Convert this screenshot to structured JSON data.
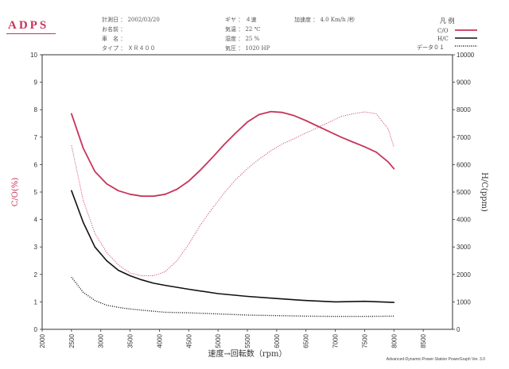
{
  "logo": "ADPS",
  "header": {
    "date": "計測日 ： 2002/03/20",
    "name": "お名前 ：",
    "vehicle": "車　名 ：",
    "type": "タイプ ： ＸＲ４００",
    "gear": "ギヤ ： ４速",
    "temp": "気温 ： 22 ℃",
    "humidity": "湿度 ： 25 %",
    "pressure": "気圧 ： 1020 HP",
    "accel": "加速度 ： 4.0 Km/h /秒"
  },
  "legend": {
    "title": "凡 例",
    "items": [
      {
        "label": "C/O",
        "color": "#c8345a",
        "style": "solid"
      },
      {
        "label": "H/C",
        "color": "#111111",
        "style": "solid"
      },
      {
        "label": "データ０１",
        "color": "#111111",
        "style": "dotted"
      }
    ]
  },
  "footer": "Advanced-Dynamic-Power-Station PowerGraph Ver. 3.0",
  "chart_data": {
    "type": "line",
    "xlabel": "速度→回転数（rpm）",
    "ylabel_left": "C/O(%)",
    "ylabel_right": "H/C(ppm)",
    "xlim": [
      2000,
      9000
    ],
    "ylim_left": [
      0,
      10
    ],
    "ylim_right": [
      0,
      10000
    ],
    "x_ticks": [
      2000,
      2500,
      3000,
      3500,
      4000,
      4500,
      5000,
      5500,
      6000,
      6500,
      7000,
      7500,
      8000,
      8500
    ],
    "y_ticks_left": [
      0,
      1,
      2,
      3,
      4,
      5,
      6,
      7,
      8,
      9,
      10
    ],
    "y_ticks_right": [
      0,
      1000,
      2000,
      3000,
      4000,
      5000,
      6000,
      7000,
      8000,
      9000,
      10000
    ],
    "grid": false,
    "series": [
      {
        "name": "C/O",
        "axis": "left",
        "color": "#c8345a",
        "style": "solid",
        "width": 1.8,
        "x": [
          2500,
          2700,
          2900,
          3100,
          3300,
          3500,
          3700,
          3900,
          4100,
          4300,
          4500,
          4700,
          4900,
          5100,
          5300,
          5500,
          5700,
          5900,
          6100,
          6300,
          6500,
          6700,
          6900,
          7100,
          7300,
          7500,
          7700,
          7900,
          8000
        ],
        "y": [
          7.85,
          6.6,
          5.75,
          5.3,
          5.05,
          4.92,
          4.85,
          4.85,
          4.92,
          5.1,
          5.4,
          5.8,
          6.25,
          6.72,
          7.15,
          7.55,
          7.82,
          7.93,
          7.9,
          7.78,
          7.6,
          7.4,
          7.2,
          7.0,
          6.82,
          6.65,
          6.45,
          6.1,
          5.85
        ]
      },
      {
        "name": "H/C",
        "axis": "left",
        "color": "#111111",
        "style": "solid",
        "width": 1.6,
        "x": [
          2500,
          2700,
          2900,
          3100,
          3300,
          3500,
          3700,
          3900,
          4100,
          4500,
          5000,
          5500,
          6000,
          6500,
          7000,
          7500,
          8000
        ],
        "y": [
          5.05,
          3.9,
          3.0,
          2.5,
          2.15,
          1.95,
          1.8,
          1.68,
          1.6,
          1.46,
          1.3,
          1.2,
          1.12,
          1.05,
          1.0,
          1.02,
          0.98
        ]
      },
      {
        "name": "",
        "axis": "right",
        "color": "#c8345a",
        "style": "dotted",
        "width": 1.0,
        "x": [
          2500,
          2700,
          2900,
          3100,
          3300,
          3500,
          3700,
          3900,
          4100,
          4300,
          4500,
          4700,
          4900,
          5100,
          5300,
          5500,
          5700,
          5900,
          6100,
          6300,
          6500,
          6700,
          6900,
          7100,
          7300,
          7500,
          7700,
          7900,
          8000
        ],
        "y": [
          6700,
          4700,
          3500,
          2800,
          2350,
          2050,
          1950,
          1950,
          2100,
          2500,
          3100,
          3800,
          4400,
          4950,
          5450,
          5850,
          6200,
          6500,
          6750,
          6950,
          7150,
          7350,
          7550,
          7750,
          7850,
          7920,
          7850,
          7300,
          6650
        ]
      },
      {
        "name": "データ０１",
        "axis": "left",
        "color": "#111111",
        "style": "dotted",
        "width": 1.4,
        "x": [
          2500,
          2700,
          2900,
          3100,
          3300,
          3500,
          3700,
          3900,
          4100,
          4500,
          5000,
          5500,
          6000,
          6500,
          7000,
          7500,
          8000
        ],
        "y": [
          1.9,
          1.35,
          1.05,
          0.88,
          0.8,
          0.74,
          0.7,
          0.66,
          0.62,
          0.6,
          0.56,
          0.52,
          0.5,
          0.48,
          0.47,
          0.47,
          0.48
        ]
      }
    ]
  }
}
